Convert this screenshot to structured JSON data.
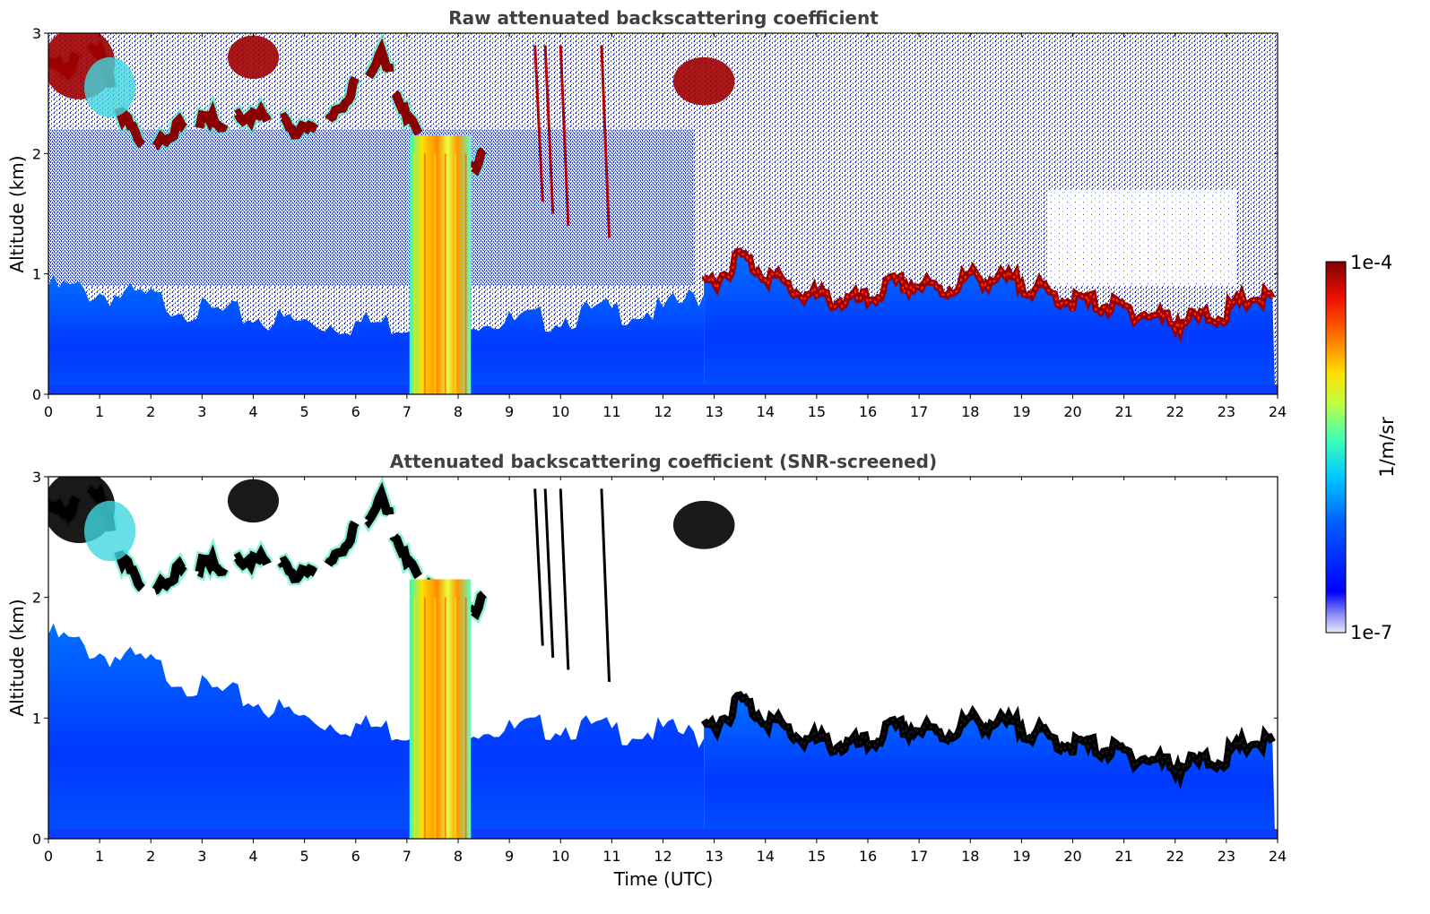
{
  "chart_data": [
    {
      "type": "heatmap",
      "title": "Raw attenuated backscattering coefficient",
      "xlabel": "",
      "ylabel": "Altitude (km)",
      "xlim": [
        0,
        24
      ],
      "ylim": [
        0,
        3
      ],
      "x_ticks": [
        "0",
        "1",
        "2",
        "3",
        "4",
        "5",
        "6",
        "7",
        "8",
        "9",
        "10",
        "11",
        "12",
        "13",
        "14",
        "15",
        "16",
        "17",
        "18",
        "19",
        "20",
        "21",
        "22",
        "23",
        "24"
      ],
      "y_ticks": [
        "0",
        "1",
        "2",
        "3"
      ],
      "screened": false,
      "features": {
        "boundary_layer_top_km": [
          [
            12.8,
            0.95
          ],
          [
            13.2,
            1.05
          ],
          [
            13.5,
            1.2
          ],
          [
            13.8,
            1.1
          ],
          [
            14.2,
            1.0
          ],
          [
            14.6,
            0.9
          ],
          [
            15.0,
            0.85
          ],
          [
            15.5,
            0.82
          ],
          [
            16.0,
            0.82
          ],
          [
            16.4,
            0.95
          ],
          [
            17.0,
            0.95
          ],
          [
            17.5,
            0.9
          ],
          [
            18.0,
            1.02
          ],
          [
            18.5,
            1.0
          ],
          [
            19.0,
            0.97
          ],
          [
            19.5,
            0.88
          ],
          [
            20.0,
            0.82
          ],
          [
            20.5,
            0.8
          ],
          [
            21.0,
            0.75
          ],
          [
            21.5,
            0.7
          ],
          [
            22.0,
            0.65
          ],
          [
            22.5,
            0.67
          ],
          [
            23.0,
            0.72
          ],
          [
            23.5,
            0.85
          ],
          [
            23.95,
            0.82
          ]
        ],
        "precipitation_hours": [
          7.05,
          8.25
        ],
        "upper_cloud_layer_km": [
          [
            0.0,
            2.75
          ],
          [
            0.4,
            2.75
          ],
          [
            0.6,
            2.85
          ],
          [
            0.9,
            2.95
          ],
          [
            1.2,
            2.6
          ],
          [
            1.5,
            2.3
          ],
          [
            2.0,
            2.05
          ],
          [
            2.5,
            2.25
          ],
          [
            3.0,
            2.3
          ],
          [
            3.5,
            2.3
          ],
          [
            4.0,
            2.35
          ],
          [
            4.5,
            2.3
          ],
          [
            5.0,
            2.2
          ],
          [
            5.5,
            2.3
          ],
          [
            6.0,
            2.6
          ],
          [
            6.5,
            2.85
          ],
          [
            7.0,
            2.3
          ],
          [
            7.5,
            2.1
          ],
          [
            8.0,
            1.85
          ],
          [
            8.5,
            2.0
          ]
        ]
      }
    },
    {
      "type": "heatmap",
      "title": "Attenuated backscattering coefficient (SNR-screened)",
      "xlabel": "Time (UTC)",
      "ylabel": "Altitude (km)",
      "xlim": [
        0,
        24
      ],
      "ylim": [
        0,
        3
      ],
      "x_ticks": [
        "0",
        "1",
        "2",
        "3",
        "4",
        "5",
        "6",
        "7",
        "8",
        "9",
        "10",
        "11",
        "12",
        "13",
        "14",
        "15",
        "16",
        "17",
        "18",
        "19",
        "20",
        "21",
        "22",
        "23",
        "24"
      ],
      "y_ticks": [
        "0",
        "1",
        "2",
        "3"
      ],
      "screened": true
    }
  ],
  "colorbar": {
    "label": "1/m/sr",
    "max_label": "1e-4",
    "min_label": "1e-7",
    "scale": "log",
    "range": [
      1e-07,
      0.0001
    ],
    "colormap": "jet"
  }
}
